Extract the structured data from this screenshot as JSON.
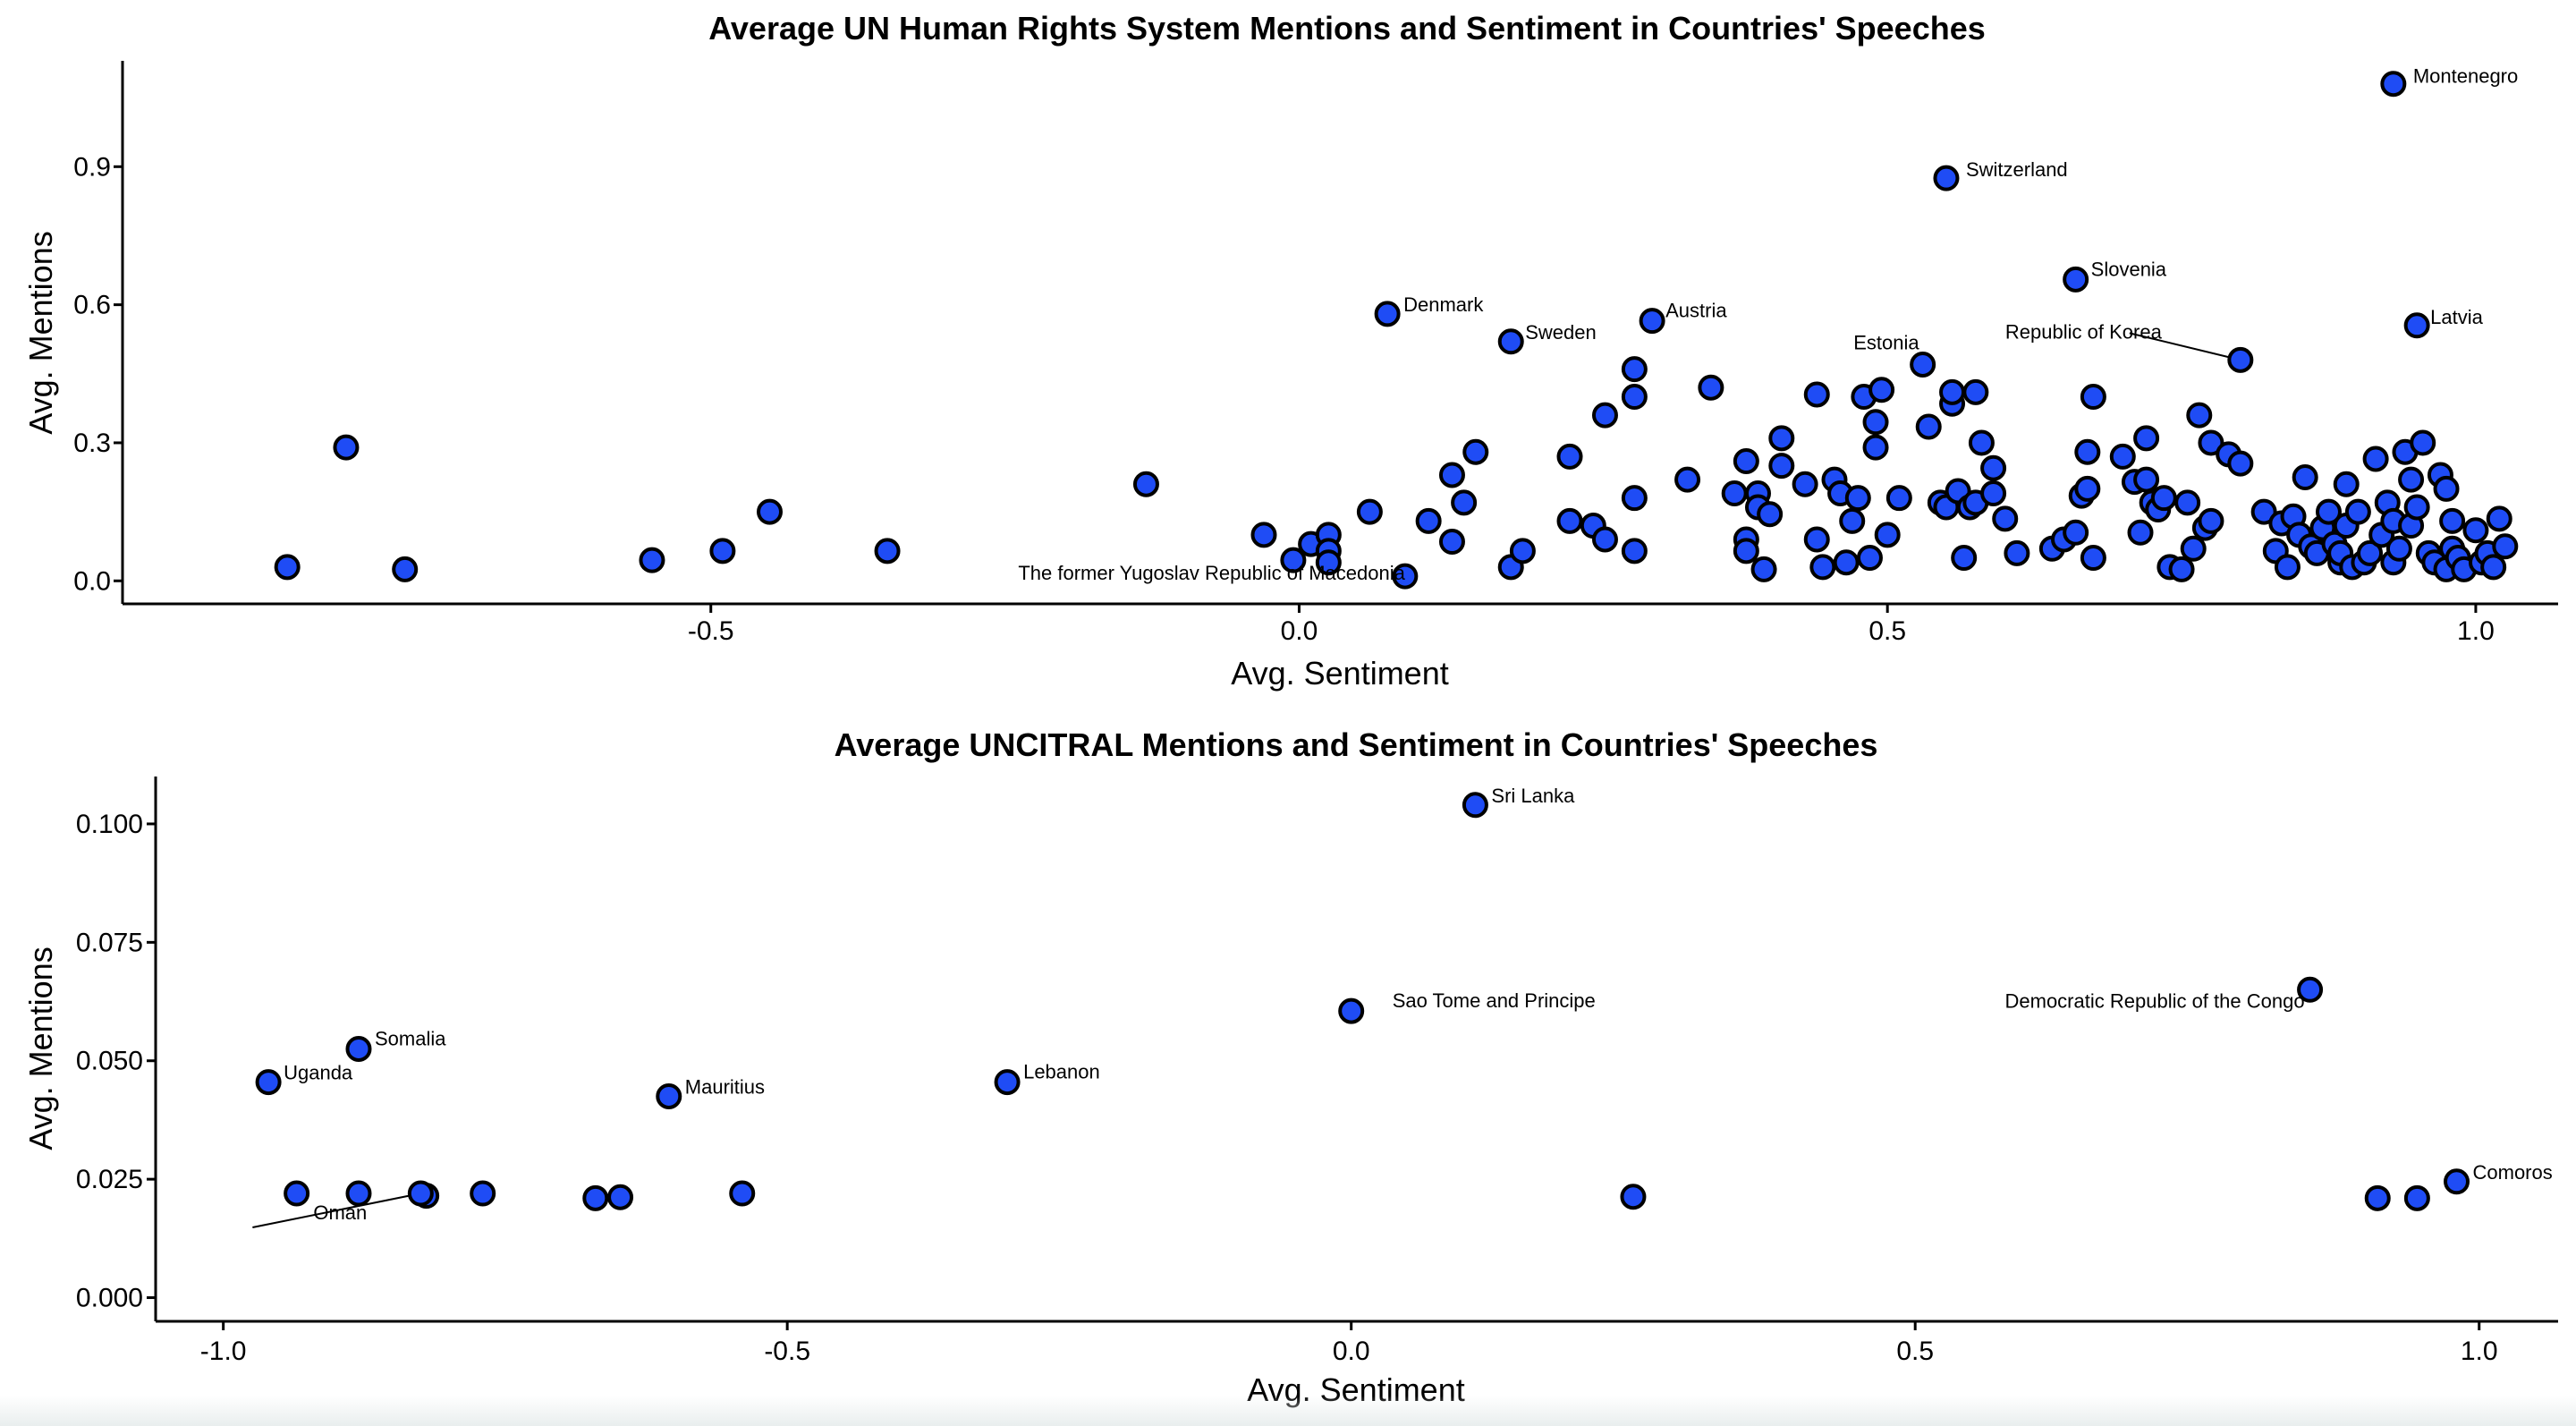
{
  "chart_data": [
    {
      "type": "scatter",
      "title": "Average UN Human Rights System Mentions and Sentiment in Countries' Speeches",
      "xlabel": "Avg. Sentiment",
      "ylabel": "Avg. Mentions",
      "xlim": [
        -1.0,
        1.07
      ],
      "ylim": [
        -0.05,
        1.13
      ],
      "xticks": [
        -0.5,
        0.0,
        0.5,
        1.0
      ],
      "xtick_labels": [
        "-0.5",
        "0.0",
        "0.5",
        "1.0"
      ],
      "yticks": [
        0.0,
        0.3,
        0.6,
        0.9
      ],
      "ytick_labels": [
        "0.0",
        "0.3",
        "0.6",
        "0.9"
      ],
      "grid": false,
      "legend": "none",
      "marker_color": "#1f4cf5",
      "marker_edge": "#000000",
      "labeled_points": [
        {
          "x": 0.93,
          "y": 1.08,
          "label": "Montenegro"
        },
        {
          "x": 0.55,
          "y": 0.875,
          "label": "Switzerland"
        },
        {
          "x": 0.66,
          "y": 0.655,
          "label": "Slovenia"
        },
        {
          "x": 0.95,
          "y": 0.555,
          "label": "Latvia"
        },
        {
          "x": 0.075,
          "y": 0.58,
          "label": "Denmark"
        },
        {
          "x": 0.18,
          "y": 0.52,
          "label": "Sweden"
        },
        {
          "x": 0.3,
          "y": 0.565,
          "label": "Austria"
        },
        {
          "x": 0.53,
          "y": 0.47,
          "label": "Estonia"
        },
        {
          "x": 0.8,
          "y": 0.48,
          "label": "Republic of Korea"
        },
        {
          "x": 0.09,
          "y": 0.01,
          "label": "The former Yugoslav Republic of Macedonia"
        }
      ],
      "points": [
        [
          -0.86,
          0.03
        ],
        [
          -0.81,
          0.29
        ],
        [
          -0.76,
          0.025
        ],
        [
          -0.55,
          0.045
        ],
        [
          -0.49,
          0.065
        ],
        [
          -0.45,
          0.15
        ],
        [
          -0.35,
          0.065
        ],
        [
          -0.13,
          0.21
        ],
        [
          -0.03,
          0.1
        ],
        [
          -0.005,
          0.045
        ],
        [
          0.01,
          0.08
        ],
        [
          0.025,
          0.1
        ],
        [
          0.025,
          0.065
        ],
        [
          0.025,
          0.04
        ],
        [
          0.06,
          0.15
        ],
        [
          0.11,
          0.13
        ],
        [
          0.13,
          0.23
        ],
        [
          0.13,
          0.085
        ],
        [
          0.14,
          0.17
        ],
        [
          0.15,
          0.28
        ],
        [
          0.18,
          0.03
        ],
        [
          0.19,
          0.065
        ],
        [
          0.23,
          0.13
        ],
        [
          0.23,
          0.27
        ],
        [
          0.25,
          0.12
        ],
        [
          0.26,
          0.36
        ],
        [
          0.26,
          0.09
        ],
        [
          0.285,
          0.46
        ],
        [
          0.285,
          0.4
        ],
        [
          0.285,
          0.18
        ],
        [
          0.285,
          0.065
        ],
        [
          0.33,
          0.22
        ],
        [
          0.35,
          0.42
        ],
        [
          0.37,
          0.19
        ],
        [
          0.38,
          0.26
        ],
        [
          0.38,
          0.09
        ],
        [
          0.38,
          0.065
        ],
        [
          0.39,
          0.19
        ],
        [
          0.39,
          0.16
        ],
        [
          0.395,
          0.025
        ],
        [
          0.4,
          0.145
        ],
        [
          0.41,
          0.31
        ],
        [
          0.41,
          0.25
        ],
        [
          0.43,
          0.21
        ],
        [
          0.44,
          0.405
        ],
        [
          0.44,
          0.09
        ],
        [
          0.445,
          0.03
        ],
        [
          0.455,
          0.22
        ],
        [
          0.46,
          0.19
        ],
        [
          0.465,
          0.04
        ],
        [
          0.47,
          0.13
        ],
        [
          0.475,
          0.18
        ],
        [
          0.48,
          0.4
        ],
        [
          0.485,
          0.05
        ],
        [
          0.49,
          0.345
        ],
        [
          0.49,
          0.29
        ],
        [
          0.495,
          0.415
        ],
        [
          0.5,
          0.1
        ],
        [
          0.51,
          0.18
        ],
        [
          0.535,
          0.335
        ],
        [
          0.545,
          0.17
        ],
        [
          0.55,
          0.16
        ],
        [
          0.555,
          0.385
        ],
        [
          0.555,
          0.41
        ],
        [
          0.56,
          0.195
        ],
        [
          0.565,
          0.05
        ],
        [
          0.57,
          0.16
        ],
        [
          0.575,
          0.41
        ],
        [
          0.575,
          0.17
        ],
        [
          0.58,
          0.3
        ],
        [
          0.59,
          0.245
        ],
        [
          0.59,
          0.19
        ],
        [
          0.6,
          0.135
        ],
        [
          0.61,
          0.06
        ],
        [
          0.64,
          0.07
        ],
        [
          0.65,
          0.09
        ],
        [
          0.66,
          0.105
        ],
        [
          0.665,
          0.185
        ],
        [
          0.67,
          0.2
        ],
        [
          0.67,
          0.28
        ],
        [
          0.675,
          0.05
        ],
        [
          0.675,
          0.4
        ],
        [
          0.7,
          0.27
        ],
        [
          0.71,
          0.215
        ],
        [
          0.715,
          0.105
        ],
        [
          0.72,
          0.31
        ],
        [
          0.72,
          0.22
        ],
        [
          0.725,
          0.17
        ],
        [
          0.73,
          0.155
        ],
        [
          0.735,
          0.18
        ],
        [
          0.74,
          0.03
        ],
        [
          0.75,
          0.025
        ],
        [
          0.755,
          0.17
        ],
        [
          0.76,
          0.07
        ],
        [
          0.765,
          0.36
        ],
        [
          0.77,
          0.115
        ],
        [
          0.775,
          0.13
        ],
        [
          0.775,
          0.3
        ],
        [
          0.79,
          0.275
        ],
        [
          0.8,
          0.255
        ],
        [
          0.82,
          0.15
        ],
        [
          0.83,
          0.065
        ],
        [
          0.835,
          0.125
        ],
        [
          0.84,
          0.03
        ],
        [
          0.845,
          0.14
        ],
        [
          0.85,
          0.1
        ],
        [
          0.855,
          0.225
        ],
        [
          0.86,
          0.075
        ],
        [
          0.865,
          0.06
        ],
        [
          0.87,
          0.115
        ],
        [
          0.875,
          0.15
        ],
        [
          0.88,
          0.08
        ],
        [
          0.885,
          0.04
        ],
        [
          0.885,
          0.06
        ],
        [
          0.89,
          0.12
        ],
        [
          0.89,
          0.21
        ],
        [
          0.895,
          0.03
        ],
        [
          0.9,
          0.15
        ],
        [
          0.905,
          0.04
        ],
        [
          0.91,
          0.06
        ],
        [
          0.915,
          0.265
        ],
        [
          0.92,
          0.1
        ],
        [
          0.925,
          0.17
        ],
        [
          0.93,
          0.13
        ],
        [
          0.93,
          0.04
        ],
        [
          0.935,
          0.07
        ],
        [
          0.94,
          0.28
        ],
        [
          0.945,
          0.22
        ],
        [
          0.945,
          0.12
        ],
        [
          0.95,
          0.16
        ],
        [
          0.955,
          0.3
        ],
        [
          0.96,
          0.06
        ],
        [
          0.965,
          0.04
        ],
        [
          0.97,
          0.23
        ],
        [
          0.975,
          0.025
        ],
        [
          0.975,
          0.2
        ],
        [
          0.98,
          0.13
        ],
        [
          0.98,
          0.07
        ],
        [
          0.985,
          0.05
        ],
        [
          0.99,
          0.025
        ],
        [
          1.0,
          0.11
        ],
        [
          1.005,
          0.04
        ],
        [
          1.01,
          0.06
        ],
        [
          1.015,
          0.03
        ],
        [
          1.02,
          0.135
        ],
        [
          1.025,
          0.075
        ]
      ]
    },
    {
      "type": "scatter",
      "title": "Average UNCITRAL Mentions and Sentiment in Countries' Speeches",
      "xlabel": "Avg. Sentiment",
      "ylabel": "Avg. Mentions",
      "xlim": [
        -1.06,
        1.07
      ],
      "ylim": [
        -0.005,
        0.11
      ],
      "xticks": [
        -1.0,
        -0.5,
        0.0,
        0.5,
        1.0
      ],
      "xtick_labels": [
        "-1.0",
        "-0.5",
        "0.0",
        "0.5",
        "1.0"
      ],
      "yticks": [
        0.0,
        0.025,
        0.05,
        0.075,
        0.1
      ],
      "ytick_labels": [
        "0.000",
        "0.025",
        "0.050",
        "0.075",
        "0.100"
      ],
      "grid": false,
      "legend": "none",
      "marker_color": "#1f4cf5",
      "marker_edge": "#000000",
      "labeled_points": [
        {
          "x": 0.11,
          "y": 0.104,
          "label": "Sri Lanka"
        },
        {
          "x": 0.0,
          "y": 0.0605,
          "label": "Sao Tome and Principe"
        },
        {
          "x": 0.85,
          "y": 0.065,
          "label": "Democratic Republic of the Congo"
        },
        {
          "x": -0.88,
          "y": 0.0525,
          "label": "Somalia"
        },
        {
          "x": -0.96,
          "y": 0.0455,
          "label": "Uganda"
        },
        {
          "x": -0.605,
          "y": 0.0425,
          "label": "Mauritius"
        },
        {
          "x": -0.305,
          "y": 0.0455,
          "label": "Lebanon"
        },
        {
          "x": 0.98,
          "y": 0.0245,
          "label": "Comoros"
        },
        {
          "x": -0.825,
          "y": 0.022,
          "label": "Oman"
        }
      ],
      "points": [
        [
          -0.935,
          0.022
        ],
        [
          -0.88,
          0.022
        ],
        [
          -0.82,
          0.0215
        ],
        [
          -0.77,
          0.022
        ],
        [
          -0.67,
          0.021
        ],
        [
          -0.648,
          0.0212
        ],
        [
          -0.54,
          0.022
        ],
        [
          0.25,
          0.0213
        ],
        [
          0.91,
          0.021
        ],
        [
          0.945,
          0.021
        ]
      ]
    }
  ]
}
